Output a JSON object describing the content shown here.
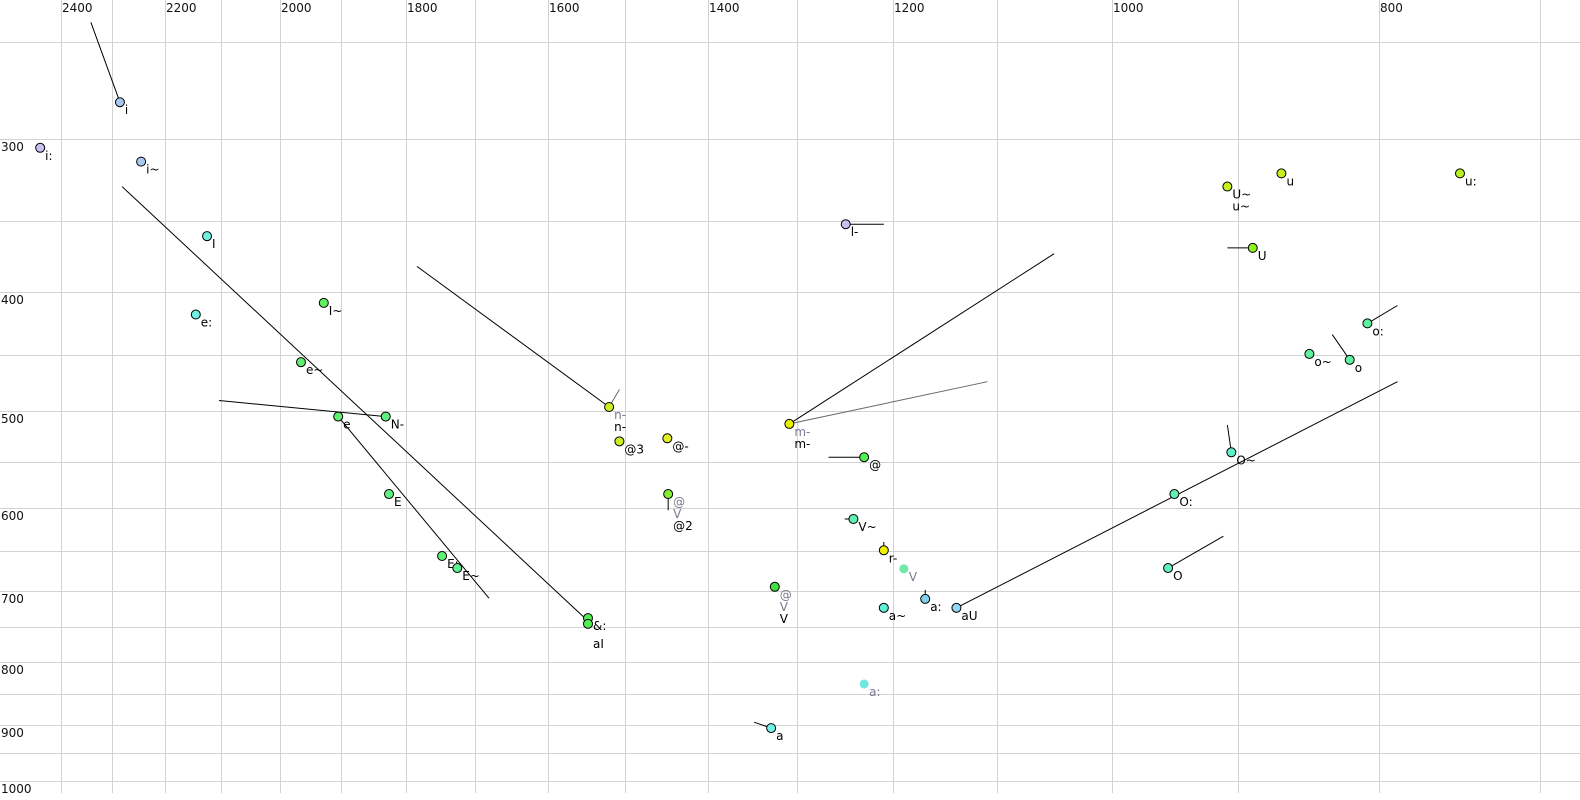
{
  "chart_data": {
    "type": "scatter",
    "title": "",
    "xlabel": "",
    "ylabel": "",
    "x_axis": {
      "quantity": "F2",
      "scale": "log",
      "reversed": true,
      "position": "top",
      "range": [
        2400,
        700
      ],
      "gridlines": [
        2400,
        2300,
        2200,
        2100,
        2000,
        1900,
        1800,
        1700,
        1600,
        1500,
        1400,
        1300,
        1200,
        1100,
        1000,
        900,
        800,
        700
      ],
      "tick_labels": [
        "2400",
        "2200",
        "2000",
        "1800",
        "1600",
        "1400",
        "1200",
        "1000",
        "800"
      ]
    },
    "y_axis": {
      "quantity": "F1",
      "scale": "log",
      "reversed": false,
      "position": "left",
      "range": [
        250,
        1000
      ],
      "gridlines": [
        250,
        300,
        350,
        400,
        450,
        500,
        550,
        600,
        650,
        700,
        750,
        800,
        850,
        900,
        950,
        1000
      ],
      "tick_labels": [
        "300",
        "400",
        "500",
        "600",
        "700",
        "800",
        "900",
        "1000"
      ]
    },
    "grid": true,
    "points": [
      {
        "f2": 2442,
        "f1": 305,
        "color": "#c8c0f0",
        "labels": [
          {
            "text": "i:",
            "muted": false
          }
        ]
      },
      {
        "f2": 2285,
        "f1": 280,
        "color": "#a8c8f0",
        "labels": [
          {
            "text": "i",
            "muted": false
          }
        ]
      },
      {
        "f2": 2245,
        "f1": 313,
        "color": "#a8c8f0",
        "labels": [
          {
            "text": "i~",
            "muted": false
          }
        ]
      },
      {
        "f2": 2125,
        "f1": 360,
        "color": "#70f0e0",
        "labels": [
          {
            "text": "I",
            "muted": false
          }
        ]
      },
      {
        "f2": 2145,
        "f1": 417,
        "color": "#70f0e0",
        "labels": [
          {
            "text": "e:",
            "muted": false
          }
        ]
      },
      {
        "f2": 1928,
        "f1": 408,
        "color": "#60f060",
        "labels": [
          {
            "text": "I~",
            "muted": false
          }
        ]
      },
      {
        "f2": 1965,
        "f1": 456,
        "color": "#60f070",
        "labels": [
          {
            "text": "e~",
            "muted": false
          }
        ]
      },
      {
        "f2": 1905,
        "f1": 505,
        "color": "#60f070",
        "labels": [
          {
            "text": "e",
            "muted": false
          }
        ]
      },
      {
        "f2": 1831,
        "f1": 505,
        "color": "#60f080",
        "labels": [
          {
            "text": "N-",
            "muted": false
          }
        ]
      },
      {
        "f2": 1826,
        "f1": 584,
        "color": "#60f080",
        "labels": [
          {
            "text": "E",
            "muted": false
          }
        ]
      },
      {
        "f2": 1747,
        "f1": 656,
        "color": "#60f070",
        "labels": [
          {
            "text": "E:",
            "muted": false
          }
        ]
      },
      {
        "f2": 1725,
        "f1": 671,
        "color": "#60f090",
        "labels": [
          {
            "text": "E~",
            "muted": false
          }
        ]
      },
      {
        "f2": 1547,
        "f1": 737,
        "color": "#50f050",
        "labels": [
          {
            "text": "&:",
            "muted": false
          }
        ]
      },
      {
        "f2": 1547,
        "f1": 745,
        "color": "#50f050",
        "labels": [
          {
            "text": "aI",
            "muted": false
          }
        ]
      },
      {
        "f2": 1520,
        "f1": 496,
        "color": "#c8f020",
        "labels": [
          {
            "text": "n-",
            "muted": true
          },
          {
            "text": "n-",
            "muted": false
          }
        ]
      },
      {
        "f2": 1507,
        "f1": 529,
        "color": "#c8f020",
        "labels": [
          {
            "text": "@3",
            "muted": false
          }
        ]
      },
      {
        "f2": 1448,
        "f1": 526,
        "color": "#e0f020",
        "labels": [
          {
            "text": "@-",
            "muted": false
          }
        ]
      },
      {
        "f2": 1447,
        "f1": 584,
        "color": "#80f030",
        "labels": [
          {
            "text": "@",
            "muted": true
          },
          {
            "text": "V",
            "muted": true
          },
          {
            "text": "@2",
            "muted": false
          }
        ]
      },
      {
        "f2": 1248,
        "f1": 352,
        "color": "#c8c0f0",
        "labels": [
          {
            "text": "l-",
            "muted": false
          }
        ]
      },
      {
        "f2": 1308,
        "f1": 512,
        "color": "#e8f000",
        "labels": [
          {
            "text": "m-",
            "muted": true
          },
          {
            "text": "m-",
            "muted": false
          }
        ]
      },
      {
        "f2": 1229,
        "f1": 545,
        "color": "#50f050",
        "labels": [
          {
            "text": "@",
            "muted": false
          }
        ]
      },
      {
        "f2": 1240,
        "f1": 612,
        "color": "#60f0b0",
        "labels": [
          {
            "text": "V~",
            "muted": false
          }
        ]
      },
      {
        "f2": 1209,
        "f1": 649,
        "color": "#f0f000",
        "labels": [
          {
            "text": "r-",
            "muted": false
          }
        ]
      },
      {
        "f2": 1189,
        "f1": 672,
        "color": "#70e8a8",
        "labels": [
          {
            "text": "V",
            "muted": true
          }
        ],
        "muted": true
      },
      {
        "f2": 1324,
        "f1": 695,
        "color": "#40e040",
        "labels": [
          {
            "text": "@",
            "muted": true
          },
          {
            "text": "V",
            "muted": true
          },
          {
            "text": "V",
            "muted": false
          }
        ]
      },
      {
        "f2": 1209,
        "f1": 723,
        "color": "#60f0d8",
        "labels": [
          {
            "text": "a~",
            "muted": false
          }
        ]
      },
      {
        "f2": 1168,
        "f1": 711,
        "color": "#80d0f0",
        "labels": [
          {
            "text": "a:",
            "muted": false
          }
        ]
      },
      {
        "f2": 1138,
        "f1": 723,
        "color": "#90d8f8",
        "labels": [
          {
            "text": "aU",
            "muted": false
          }
        ]
      },
      {
        "f2": 1229,
        "f1": 834,
        "color": "#70e8e0",
        "labels": [
          {
            "text": "a:",
            "muted": true
          }
        ],
        "muted": true
      },
      {
        "f2": 1328,
        "f1": 906,
        "color": "#70f0e8",
        "labels": [
          {
            "text": "a",
            "muted": false
          }
        ]
      },
      {
        "f2": 908,
        "f1": 328,
        "color": "#c8f020",
        "labels": [
          {
            "text": "U~",
            "muted": false
          },
          {
            "text": "u~",
            "muted": false
          }
        ]
      },
      {
        "f2": 868,
        "f1": 320,
        "color": "#c8f020",
        "labels": [
          {
            "text": "u",
            "muted": false
          }
        ]
      },
      {
        "f2": 748,
        "f1": 320,
        "color": "#b8f020",
        "labels": [
          {
            "text": "u:",
            "muted": false
          }
        ]
      },
      {
        "f2": 889,
        "f1": 368,
        "color": "#90f020",
        "labels": [
          {
            "text": "U",
            "muted": false
          }
        ]
      },
      {
        "f2": 808,
        "f1": 424,
        "color": "#60f0a0",
        "labels": [
          {
            "text": "o:",
            "muted": false
          }
        ]
      },
      {
        "f2": 848,
        "f1": 449,
        "color": "#60f0a0",
        "labels": [
          {
            "text": "o~",
            "muted": false
          }
        ]
      },
      {
        "f2": 820,
        "f1": 454,
        "color": "#60f0a0",
        "labels": [
          {
            "text": "o",
            "muted": false
          }
        ]
      },
      {
        "f2": 905,
        "f1": 540,
        "color": "#60f0c8",
        "labels": [
          {
            "text": "O~",
            "muted": false
          }
        ]
      },
      {
        "f2": 949,
        "f1": 584,
        "color": "#60f0b0",
        "labels": [
          {
            "text": "O:",
            "muted": false
          }
        ]
      },
      {
        "f2": 954,
        "f1": 671,
        "color": "#60f0b8",
        "labels": [
          {
            "text": "O",
            "muted": false
          }
        ]
      }
    ],
    "trajectories": [
      {
        "from": [
          2341,
          241
        ],
        "to": [
          2285,
          280
        ],
        "muted": false
      },
      {
        "from": [
          2281,
          328
        ],
        "to": [
          1547,
          741
        ],
        "muted": false
      },
      {
        "from": [
          2104,
          490
        ],
        "to": [
          1831,
          505
        ],
        "muted": false
      },
      {
        "from": [
          1905,
          505
        ],
        "to": [
          1680,
          710
        ],
        "muted": false
      },
      {
        "from": [
          1784,
          381
        ],
        "to": [
          1520,
          496
        ],
        "muted": false
      },
      {
        "from": [
          1520,
          496
        ],
        "to": [
          1507,
          480
        ],
        "muted": true
      },
      {
        "from": [
          1447,
          584
        ],
        "to": [
          1447,
          602
        ],
        "muted": false
      },
      {
        "from": [
          1248,
          352
        ],
        "to": [
          1209,
          352
        ],
        "muted": false
      },
      {
        "from": [
          1308,
          512
        ],
        "to": [
          1049,
          372
        ],
        "muted": false
      },
      {
        "from": [
          1308,
          512
        ],
        "to": [
          1109,
          473
        ],
        "muted": true
      },
      {
        "from": [
          1266,
          545
        ],
        "to": [
          1229,
          545
        ],
        "muted": false
      },
      {
        "from": [
          1249,
          612
        ],
        "to": [
          1240,
          612
        ],
        "muted": false
      },
      {
        "from": [
          1209,
          639
        ],
        "to": [
          1209,
          649
        ],
        "muted": false
      },
      {
        "from": [
          1168,
          699
        ],
        "to": [
          1168,
          711
        ],
        "muted": false
      },
      {
        "from": [
          1138,
          723
        ],
        "to": [
          788,
          473
        ],
        "muted": false
      },
      {
        "from": [
          1347,
          896
        ],
        "to": [
          1328,
          906
        ],
        "muted": false
      },
      {
        "from": [
          908,
          368
        ],
        "to": [
          889,
          368
        ],
        "muted": false
      },
      {
        "from": [
          808,
          424
        ],
        "to": [
          788,
          410
        ],
        "muted": false
      },
      {
        "from": [
          832,
          433
        ],
        "to": [
          820,
          454
        ],
        "muted": false
      },
      {
        "from": [
          908,
          513
        ],
        "to": [
          905,
          540
        ],
        "muted": false
      },
      {
        "from": [
          954,
          671
        ],
        "to": [
          911,
          632
        ],
        "muted": false
      }
    ],
    "colors": {
      "grid": "#d2d2d2",
      "muted_label": "#7a7890",
      "label": "#000000"
    }
  }
}
